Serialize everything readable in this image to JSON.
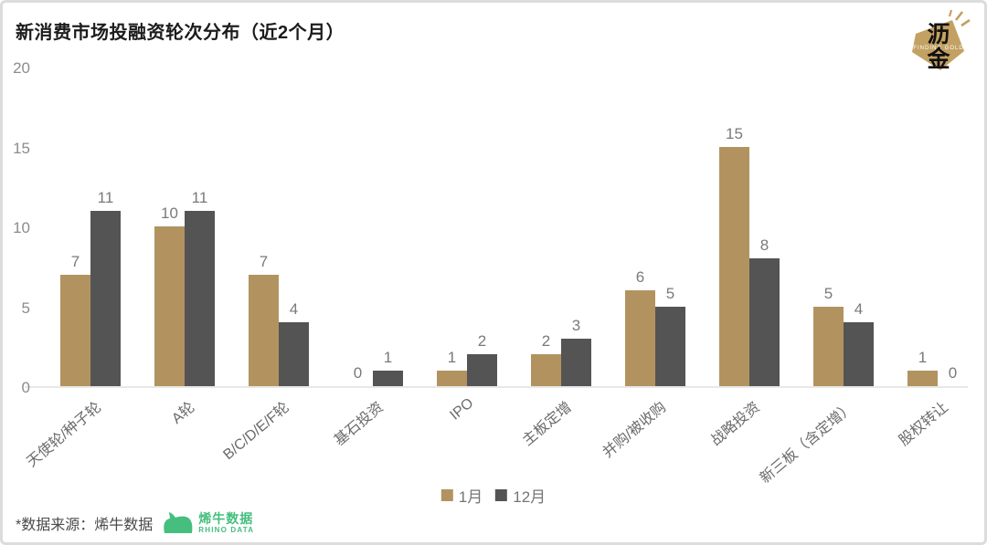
{
  "header": {
    "title": "新消费市场投融资轮次分布（近2个月）"
  },
  "brand_logo": {
    "char_top": "沥",
    "char_bottom": "金",
    "subtext": "FINDING GOLD",
    "color": "#C2A162"
  },
  "chart_data": {
    "type": "bar",
    "title": "新消费市场投融资轮次分布（近2个月）",
    "categories": [
      "天使轮/种子轮",
      "A轮",
      "B/C/D/E/F轮",
      "基石投资",
      "IPO",
      "主板定增",
      "并购/被收购",
      "战略投资",
      "新三板（含定增）",
      "股权转让"
    ],
    "series": [
      {
        "name": "1月",
        "color": "#B29360",
        "values": [
          7,
          10,
          7,
          0,
          1,
          2,
          6,
          15,
          5,
          1
        ]
      },
      {
        "name": "12月",
        "color": "#545454",
        "values": [
          11,
          11,
          4,
          1,
          2,
          3,
          5,
          8,
          4,
          0
        ]
      }
    ],
    "ylim": [
      0,
      20
    ],
    "yticks": [
      0,
      5,
      10,
      15,
      20
    ],
    "grid": false,
    "value_labels": true,
    "legend_position": "bottom-center"
  },
  "footer": {
    "source_text": "*数据来源：烯牛数据",
    "rhino_logo": {
      "name_cn": "烯牛数据",
      "name_en": "RHINO DATA",
      "color": "#45BE7E"
    }
  }
}
